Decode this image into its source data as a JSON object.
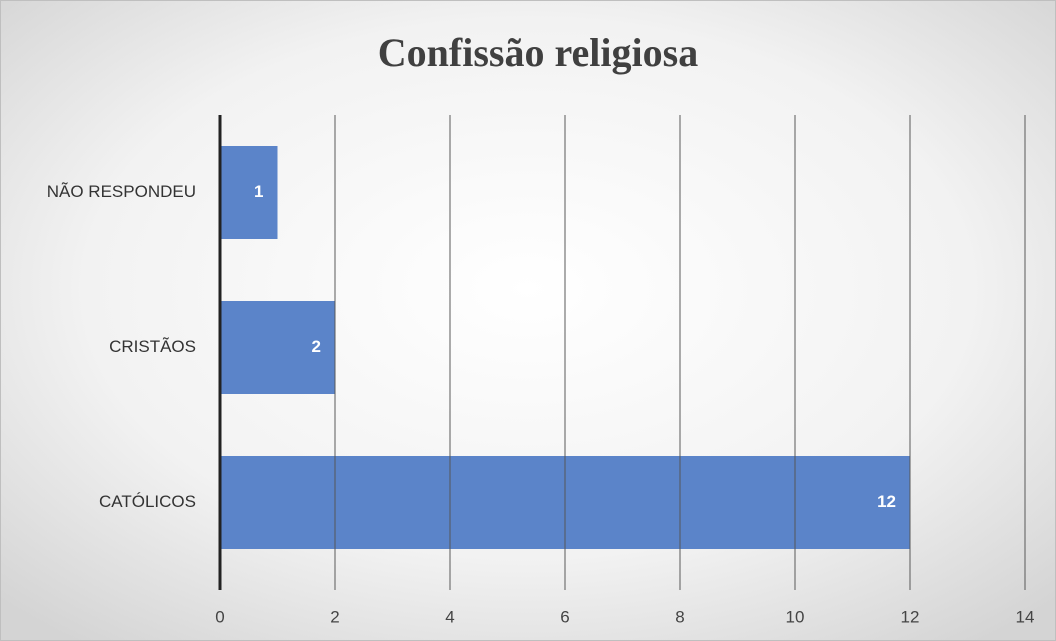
{
  "chart_data": {
    "type": "bar",
    "orientation": "horizontal",
    "title": "Confissão religiosa",
    "categories": [
      "NÃO RESPONDEU",
      "CRISTÃOS",
      "CATÓLICOS"
    ],
    "values": [
      1,
      2,
      12
    ],
    "color": "#5b84c9",
    "xlim": [
      0,
      14
    ],
    "xticks": [
      0,
      2,
      4,
      6,
      8,
      10,
      12,
      14
    ],
    "grid": true
  }
}
